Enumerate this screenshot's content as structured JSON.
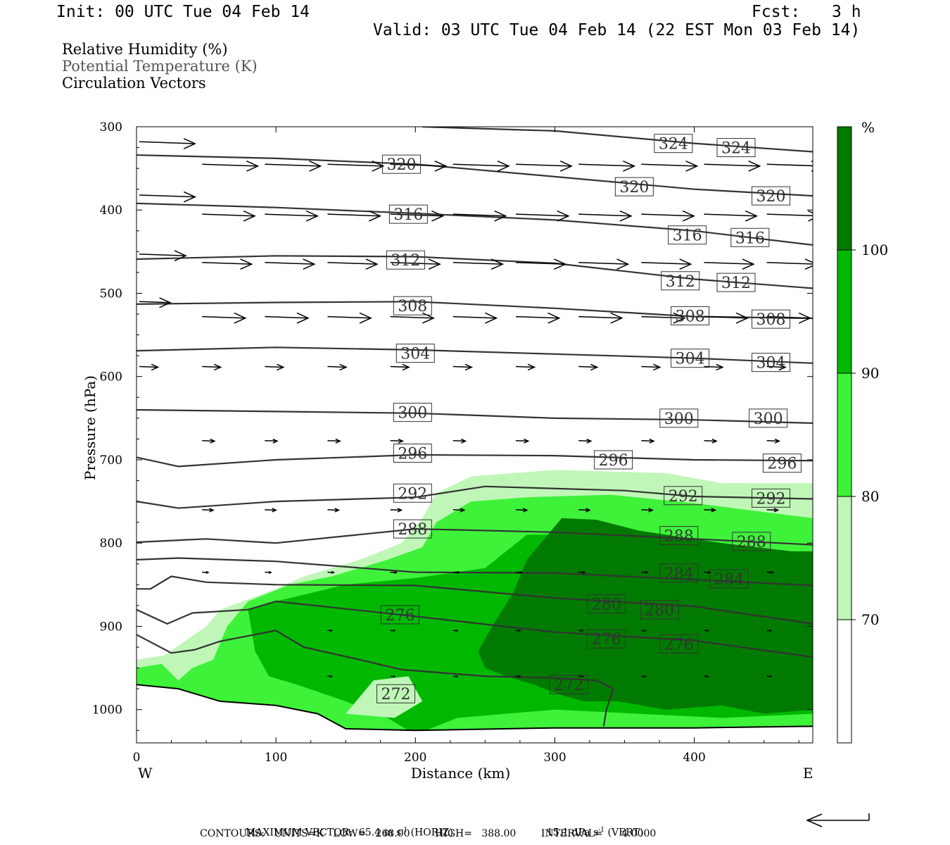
{
  "header": {
    "init": "Init: 00 UTC Tue 04 Feb 14",
    "fcst_label": "Fcst:",
    "fcst_value": "3 h",
    "valid": "Valid: 03 UTC Tue 04 Feb 14 (22 EST Mon 03 Feb 14)"
  },
  "legend": {
    "rh": "Relative Humidity (%)",
    "theta": "Potential Temperature (K)",
    "vectors": "Circulation Vectors"
  },
  "footer": {
    "max_vector_label": "MAXIMUM VECTOR:",
    "horiz_value": "65.4 m s",
    "horiz_exp": "-1",
    "horiz_tag": "(HORIZ)",
    "vert_value": "15.1 dPa s",
    "vert_exp": "-1",
    "vert_tag": "(VERT)",
    "contours": "CONTOURS:   UNITS=K   LOW=   268.00        HIGH=   388.00        INTERVAL=      4.0000"
  },
  "colors": {
    "rh_70_80": "#c0f7b8",
    "rh_80_90": "#3ef23a",
    "rh_90_100": "#00b800",
    "rh_100": "#007a00",
    "contour": "#333333",
    "vector": "#000000"
  },
  "chart_data": {
    "type": "cross-section",
    "xlabel": "Distance (km)",
    "ylabel": "Pressure (hPa)",
    "xlim": [
      0,
      485
    ],
    "ylim": [
      300,
      1040
    ],
    "x_ticks": [
      0,
      100,
      200,
      300,
      400
    ],
    "y_ticks": [
      300,
      400,
      500,
      600,
      700,
      800,
      900,
      1000
    ],
    "x_end_labels": {
      "left": "W",
      "right": "E"
    },
    "colorbar": {
      "unit": "%",
      "levels": [
        70,
        80,
        90,
        100
      ]
    },
    "theta_contours": [
      {
        "value": 324,
        "points": [
          [
            205,
            300
          ],
          [
            300,
            305
          ],
          [
            400,
            320
          ],
          [
            485,
            330
          ]
        ],
        "labels": [
          [
            385,
            320
          ],
          [
            430,
            325
          ]
        ]
      },
      {
        "value": 320,
        "points": [
          [
            0,
            334
          ],
          [
            100,
            338
          ],
          [
            200,
            345
          ],
          [
            300,
            360
          ],
          [
            400,
            375
          ],
          [
            485,
            383
          ]
        ],
        "labels": [
          [
            190,
            345
          ],
          [
            357,
            372
          ],
          [
            455,
            383
          ]
        ]
      },
      {
        "value": 316,
        "points": [
          [
            0,
            392
          ],
          [
            100,
            397
          ],
          [
            200,
            404
          ],
          [
            300,
            412
          ],
          [
            400,
            425
          ],
          [
            485,
            442
          ]
        ],
        "labels": [
          [
            195,
            405
          ],
          [
            395,
            430
          ],
          [
            440,
            433
          ]
        ]
      },
      {
        "value": 312,
        "points": [
          [
            0,
            459
          ],
          [
            100,
            455
          ],
          [
            200,
            456
          ],
          [
            300,
            464
          ],
          [
            400,
            483
          ],
          [
            485,
            494
          ]
        ],
        "labels": [
          [
            193,
            460
          ],
          [
            390,
            485
          ],
          [
            430,
            487
          ]
        ]
      },
      {
        "value": 308,
        "points": [
          [
            0,
            513
          ],
          [
            100,
            511
          ],
          [
            200,
            510
          ],
          [
            300,
            518
          ],
          [
            400,
            528
          ],
          [
            485,
            530
          ]
        ],
        "labels": [
          [
            198,
            515
          ],
          [
            397,
            527
          ],
          [
            455,
            531
          ]
        ]
      },
      {
        "value": 304,
        "points": [
          [
            0,
            569
          ],
          [
            100,
            565
          ],
          [
            200,
            568
          ],
          [
            300,
            573
          ],
          [
            400,
            578
          ],
          [
            485,
            584
          ]
        ],
        "labels": [
          [
            200,
            572
          ],
          [
            397,
            578
          ],
          [
            455,
            583
          ]
        ]
      },
      {
        "value": 300,
        "points": [
          [
            0,
            640
          ],
          [
            100,
            642
          ],
          [
            200,
            644
          ],
          [
            300,
            650
          ],
          [
            400,
            652
          ],
          [
            485,
            656
          ]
        ],
        "labels": [
          [
            198,
            643
          ],
          [
            389,
            650
          ],
          [
            453,
            650
          ]
        ]
      },
      {
        "value": 296,
        "points": [
          [
            0,
            697
          ],
          [
            30,
            708
          ],
          [
            100,
            700
          ],
          [
            200,
            694
          ],
          [
            300,
            695
          ],
          [
            400,
            700
          ],
          [
            485,
            701
          ]
        ],
        "labels": [
          [
            198,
            692
          ],
          [
            342,
            700
          ],
          [
            463,
            704
          ]
        ]
      },
      {
        "value": 292,
        "points": [
          [
            0,
            750
          ],
          [
            30,
            758
          ],
          [
            100,
            750
          ],
          [
            200,
            745
          ],
          [
            250,
            732
          ],
          [
            350,
            737
          ],
          [
            400,
            744
          ],
          [
            485,
            747
          ]
        ],
        "labels": [
          [
            198,
            740
          ],
          [
            392,
            743
          ],
          [
            455,
            746
          ]
        ]
      },
      {
        "value": 288,
        "points": [
          [
            0,
            799
          ],
          [
            50,
            795
          ],
          [
            100,
            800
          ],
          [
            200,
            783
          ],
          [
            300,
            787
          ],
          [
            400,
            795
          ],
          [
            485,
            802
          ]
        ],
        "labels": [
          [
            198,
            783
          ],
          [
            389,
            791
          ],
          [
            441,
            798
          ]
        ]
      },
      {
        "value": 284,
        "points": [
          [
            0,
            820
          ],
          [
            30,
            818
          ],
          [
            100,
            822
          ],
          [
            200,
            835
          ],
          [
            300,
            836
          ],
          [
            400,
            844
          ],
          [
            485,
            851
          ]
        ],
        "labels": [
          [
            389,
            836
          ],
          [
            425,
            843
          ]
        ]
      },
      {
        "value": 280,
        "points": [
          [
            0,
            855
          ],
          [
            10,
            855
          ],
          [
            25,
            840
          ],
          [
            50,
            847
          ],
          [
            100,
            850
          ],
          [
            200,
            851
          ],
          [
            300,
            866
          ],
          [
            400,
            876
          ],
          [
            485,
            897
          ]
        ],
        "labels": [
          [
            337,
            873
          ],
          [
            375,
            880
          ]
        ]
      },
      {
        "value": 276,
        "points": [
          [
            0,
            880
          ],
          [
            22,
            897
          ],
          [
            40,
            884
          ],
          [
            80,
            880
          ],
          [
            100,
            870
          ],
          [
            200,
            888
          ],
          [
            300,
            907
          ],
          [
            400,
            917
          ],
          [
            485,
            937
          ]
        ],
        "labels": [
          [
            189,
            886
          ],
          [
            337,
            915
          ],
          [
            389,
            921
          ]
        ]
      },
      {
        "value": 272,
        "points": [
          [
            0,
            910
          ],
          [
            25,
            932
          ],
          [
            42,
            928
          ],
          [
            60,
            918
          ],
          [
            100,
            905
          ],
          [
            120,
            925
          ],
          [
            160,
            940
          ],
          [
            190,
            952
          ],
          [
            250,
            960
          ],
          [
            300,
            962
          ],
          [
            330,
            965
          ],
          [
            342,
            975
          ],
          [
            337,
            1000
          ],
          [
            335,
            1020
          ]
        ],
        "labels": [
          [
            186,
            981
          ],
          [
            310,
            970
          ]
        ]
      }
    ],
    "vector_rows": [
      {
        "p": 318,
        "x": [
          0
        ],
        "len": 0.9
      },
      {
        "p": 345,
        "x": [
          45,
          90,
          135,
          180,
          225,
          270,
          315,
          360,
          405,
          450
        ],
        "len": 0.9
      },
      {
        "p": 382,
        "x": [
          0
        ],
        "len": 0.9
      },
      {
        "p": 405,
        "x": [
          45,
          90,
          135,
          180,
          225,
          270,
          315,
          360,
          405,
          450
        ],
        "len": 0.85
      },
      {
        "p": 453,
        "x": [
          0
        ],
        "len": 0.75
      },
      {
        "p": 463,
        "x": [
          45,
          90,
          135,
          180,
          225,
          270,
          315,
          360,
          405,
          450
        ],
        "len": 0.8
      },
      {
        "p": 510,
        "x": [
          0
        ],
        "len": 0.5
      },
      {
        "p": 528,
        "x": [
          45,
          90,
          135,
          180,
          225,
          270,
          315,
          360,
          405,
          450
        ],
        "len": 0.7
      },
      {
        "p": 588,
        "x": [
          0,
          45,
          90,
          135,
          180,
          225,
          270,
          315,
          360,
          405,
          450
        ],
        "len": 0.3
      },
      {
        "p": 677,
        "x": [
          45,
          90,
          135,
          180,
          225,
          270,
          315,
          360,
          405,
          450
        ],
        "len": 0.2
      },
      {
        "p": 760,
        "x": [
          45,
          90,
          135,
          180,
          225,
          270,
          315,
          360,
          405,
          450
        ],
        "len": 0.18
      },
      {
        "p": 835,
        "x": [
          45,
          90,
          135,
          180,
          225,
          270,
          315,
          360,
          405,
          450
        ],
        "len": 0.1
      },
      {
        "p": 905,
        "x": [
          135,
          180,
          225,
          270,
          315,
          360,
          405,
          450
        ],
        "len": 0.06
      },
      {
        "p": 960,
        "x": [
          135,
          180,
          225,
          270,
          315,
          360,
          405,
          450
        ],
        "len": 0.06
      }
    ]
  }
}
